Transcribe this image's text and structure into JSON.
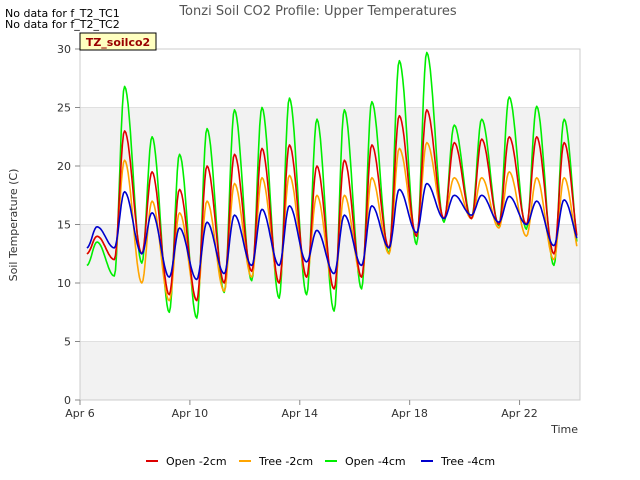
{
  "no_data_notes": [
    "No data for f_T2_TC1",
    "No data for f_T2_TC2"
  ],
  "site_badge": "TZ_soilco2",
  "colors": {
    "band": "#f2f2f2",
    "badge_bg": "#ffffc0",
    "badge_text": "#990000",
    "Open -2cm": "#dd0000",
    "Tree -2cm": "#ffa500",
    "Open -4cm": "#00ee00",
    "Tree -4cm": "#0000cc"
  },
  "chart_data": {
    "type": "line",
    "title": "Tonzi Soil CO2 Profile: Upper Temperatures",
    "xlabel": "Time",
    "ylabel": "Soil Temperature (C)",
    "x_unit": "day of April",
    "xlim": [
      6,
      24.2
    ],
    "ylim": [
      0,
      30
    ],
    "x_ticks": [
      6,
      10,
      14,
      18,
      22
    ],
    "x_tick_labels": [
      "Apr 6",
      "Apr 10",
      "Apr 14",
      "Apr 18",
      "Apr 22"
    ],
    "y_ticks": [
      0,
      5,
      10,
      15,
      20,
      25,
      30
    ],
    "y_tick_labels": [
      "0",
      "5",
      "10",
      "15",
      "20",
      "25",
      "30"
    ],
    "grid": "alternating horizontal bands",
    "legend_position": "bottom",
    "daily_extremes": {
      "days": [
        6,
        7,
        8,
        9,
        10,
        11,
        12,
        13,
        14,
        15,
        16,
        17,
        18,
        19,
        20,
        21,
        22,
        23
      ],
      "Open -4cm": {
        "min": [
          11.5,
          10.6,
          11.7,
          7.5,
          7.0,
          9.2,
          10.2,
          8.7,
          9.0,
          7.6,
          9.5,
          12.5,
          13.3,
          15.2,
          15.5,
          14.9,
          14.6,
          11.5
        ],
        "max": [
          13.5,
          26.8,
          22.5,
          21.0,
          23.2,
          24.8,
          25.0,
          25.8,
          24.0,
          24.8,
          25.5,
          29.0,
          29.7,
          23.5,
          24.0,
          25.9,
          25.1,
          24.0
        ]
      },
      "Open -2cm": {
        "min": [
          12.5,
          12.0,
          12.5,
          9.0,
          8.5,
          10.0,
          11.0,
          10.0,
          10.5,
          9.5,
          10.5,
          13.0,
          14.0,
          15.5,
          15.5,
          15.0,
          15.0,
          12.5
        ],
        "max": [
          14.0,
          23.0,
          19.5,
          18.0,
          20.0,
          21.0,
          21.5,
          21.8,
          20.0,
          20.5,
          21.8,
          24.3,
          24.8,
          22.0,
          22.3,
          22.5,
          22.5,
          22.0
        ]
      },
      "Tree -2cm": {
        "min": [
          12.5,
          12.0,
          10.0,
          8.5,
          8.5,
          9.3,
          10.5,
          10.0,
          10.5,
          9.5,
          10.5,
          12.5,
          14.0,
          15.5,
          15.5,
          14.7,
          14.0,
          12.0
        ],
        "max": [
          14.0,
          20.5,
          17.0,
          16.0,
          17.0,
          18.5,
          19.0,
          19.2,
          17.5,
          17.5,
          19.0,
          21.5,
          22.0,
          19.0,
          19.0,
          19.5,
          19.0,
          19.0
        ]
      },
      "Tree -4cm": {
        "min": [
          13.0,
          13.0,
          12.5,
          10.5,
          10.3,
          10.8,
          11.5,
          11.5,
          11.8,
          10.8,
          11.5,
          13.0,
          14.3,
          15.5,
          15.8,
          15.2,
          15.0,
          13.2
        ],
        "max": [
          14.8,
          17.8,
          16.0,
          14.7,
          15.2,
          15.8,
          16.3,
          16.6,
          14.5,
          15.8,
          16.6,
          18.0,
          18.5,
          17.5,
          17.5,
          17.4,
          17.0,
          17.1
        ]
      }
    },
    "series": [
      {
        "name": "Open -2cm",
        "color": "#dd0000",
        "x": [],
        "y": []
      },
      {
        "name": "Tree -2cm",
        "color": "#ffa500",
        "x": [],
        "y": []
      },
      {
        "name": "Open -4cm",
        "color": "#00ee00",
        "x": [],
        "y": []
      },
      {
        "name": "Tree -4cm",
        "color": "#0000cc",
        "x": [],
        "y": []
      }
    ]
  }
}
